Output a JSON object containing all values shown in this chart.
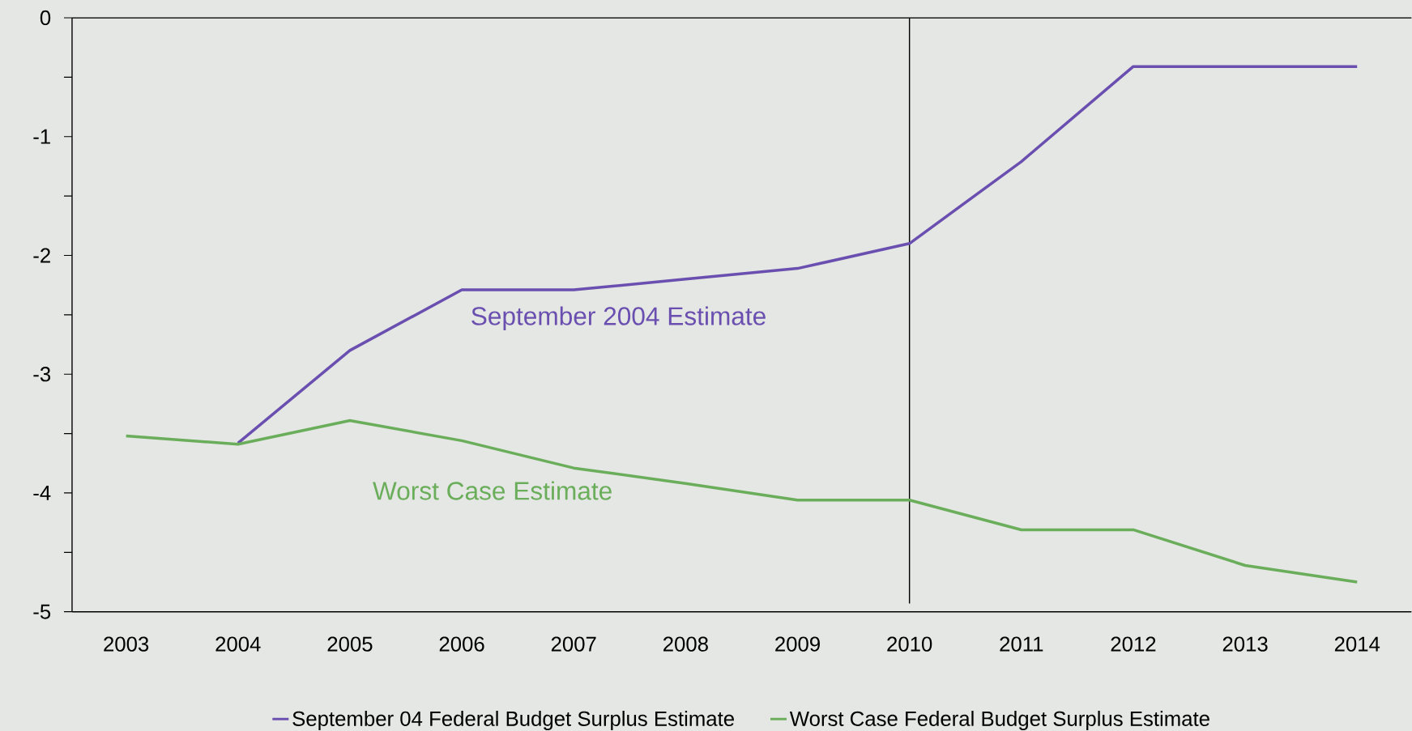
{
  "chart_data": {
    "type": "line",
    "categories": [
      "2003",
      "2004",
      "2005",
      "2006",
      "2007",
      "2008",
      "2009",
      "2010",
      "2011",
      "2012",
      "2013",
      "2014"
    ],
    "series": [
      {
        "name": "September 04 Federal Budget Surplus Estimate",
        "color": "#6a4fb0",
        "values": [
          null,
          -3.58,
          -2.8,
          -2.29,
          -2.29,
          -2.2,
          -2.11,
          -1.9,
          -1.21,
          -0.41,
          -0.41,
          -0.41
        ]
      },
      {
        "name": "Worst Case Federal Budget Surplus Estimate",
        "color": "#6aad5a",
        "values": [
          -3.52,
          -3.59,
          -3.39,
          -3.56,
          -3.79,
          -3.92,
          -4.06,
          -4.06,
          -4.31,
          -4.31,
          -4.61,
          -4.75
        ]
      }
    ],
    "ylim": [
      -5,
      0
    ],
    "yticks": [
      -5,
      {
        "value": -4.5,
        "label": null
      },
      -4,
      {
        "value": -3.5,
        "label": null
      },
      -3,
      {
        "value": -2.5,
        "label": null
      },
      -2,
      {
        "value": -1.5,
        "label": null
      },
      -1,
      {
        "value": -0.5,
        "label": null
      },
      0
    ],
    "annotations": [
      "September 2004 Estimate",
      "Worst Case Estimate"
    ],
    "ref_lines": [
      {
        "axis": "x",
        "value": "2010"
      }
    ],
    "legend": "bottom",
    "grid": false,
    "marker": "none",
    "line_style": "solid"
  }
}
